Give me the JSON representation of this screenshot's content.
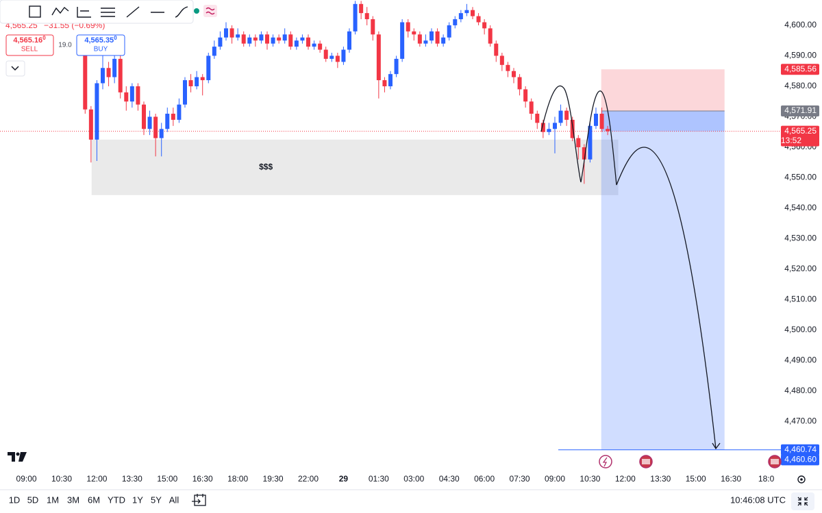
{
  "chart_data": {
    "type": "candlestick",
    "header": {
      "price": "4,565.25",
      "change": "−31.55 (−0.69%)"
    },
    "sell": {
      "price": "4,565.16",
      "price_suffix": "0",
      "label": "SELL"
    },
    "spread": "19.0",
    "buy": {
      "price": "4,565.35",
      "price_suffix": "0",
      "label": "BUY"
    },
    "xlim": [
      -4.5,
      128.5
    ],
    "ylim": [
      4454.4,
      4608.3
    ],
    "grid": false,
    "xticks": [
      {
        "value": 0,
        "label": "09:00"
      },
      {
        "value": 6,
        "label": "10:30"
      },
      {
        "value": 12,
        "label": "12:00"
      },
      {
        "value": 18,
        "label": "13:30"
      },
      {
        "value": 24,
        "label": "15:00"
      },
      {
        "value": 30,
        "label": "16:30"
      },
      {
        "value": 36,
        "label": "18:00"
      },
      {
        "value": 42,
        "label": "19:30"
      },
      {
        "value": 48,
        "label": "22:00"
      },
      {
        "value": 54,
        "label": "29"
      },
      {
        "value": 60,
        "label": "01:30"
      },
      {
        "value": 66,
        "label": "03:00"
      },
      {
        "value": 72,
        "label": "04:30"
      },
      {
        "value": 78,
        "label": "06:00"
      },
      {
        "value": 84,
        "label": "07:30"
      },
      {
        "value": 90,
        "label": "09:00"
      },
      {
        "value": 96,
        "label": "10:30"
      },
      {
        "value": 102,
        "label": "12:00"
      },
      {
        "value": 108,
        "label": "13:30"
      },
      {
        "value": 114,
        "label": "15:00"
      },
      {
        "value": 120,
        "label": "16:30"
      },
      {
        "value": 126,
        "label": "18:0"
      }
    ],
    "yticks": [
      {
        "value": 4600,
        "label": "4,600.00"
      },
      {
        "value": 4590,
        "label": "4,590.00"
      },
      {
        "value": 4580,
        "label": "4,580.00"
      },
      {
        "value": 4570,
        "label": "4,570.00"
      },
      {
        "value": 4560,
        "label": "4,560.00"
      },
      {
        "value": 4550,
        "label": "4,550.00"
      },
      {
        "value": 4540,
        "label": "4,540.00"
      },
      {
        "value": 4530,
        "label": "4,530.00"
      },
      {
        "value": 4520,
        "label": "4,520.00"
      },
      {
        "value": 4510,
        "label": "4,510.00"
      },
      {
        "value": 4500,
        "label": "4,500.00"
      },
      {
        "value": 4490,
        "label": "4,490.00"
      },
      {
        "value": 4480,
        "label": "4,480.00"
      },
      {
        "value": 4470,
        "label": "4,470.00"
      }
    ],
    "up_color": "#2962ff",
    "down_color": "#f23645",
    "candles": {
      "x": [
        10,
        11,
        12,
        13,
        14,
        15,
        16,
        17,
        18,
        19,
        20,
        21,
        22,
        23,
        24,
        25,
        26,
        27,
        28,
        29,
        30,
        31,
        32,
        33,
        34,
        35,
        36,
        37,
        38,
        39,
        40,
        41,
        42,
        43,
        44,
        45,
        46,
        47,
        48,
        49,
        50,
        51,
        52,
        53,
        54,
        55,
        56,
        57,
        58,
        59,
        60,
        61,
        62,
        63,
        64,
        65,
        66,
        67,
        68,
        69,
        70,
        71,
        72,
        73,
        74,
        75,
        76,
        77,
        78,
        79,
        80,
        81,
        82,
        83,
        84,
        85,
        86,
        87,
        88,
        89,
        90,
        91,
        92,
        93,
        94,
        95,
        96,
        97,
        98,
        99
      ],
      "open": [
        4590,
        4572.4,
        4562.5,
        4581,
        4586,
        4583,
        4589,
        4578,
        4575,
        4580,
        4574,
        4566,
        4570,
        4563,
        4566,
        4571,
        4569,
        4574,
        4582,
        4580,
        4583,
        4582,
        4590,
        4593,
        4596,
        4599,
        4596,
        4597,
        4594,
        4596,
        4595,
        4597,
        4594,
        4596,
        4595,
        4597,
        4593,
        4595,
        4596,
        4593,
        4594,
        4592,
        4589,
        4590,
        4588,
        4592,
        4598,
        4607,
        4604,
        4602,
        4597,
        4582,
        4580,
        4584,
        4589,
        4601,
        4598,
        4597,
        4594,
        4595,
        4598,
        4594,
        4596,
        4600,
        4602,
        4604,
        4605,
        4603,
        4601,
        4599,
        4594,
        4590,
        4587,
        4585,
        4583,
        4579,
        4575,
        4571,
        4568,
        4565,
        4566,
        4568,
        4572,
        4569,
        4563,
        4560,
        4556,
        4567,
        4571,
        4566
      ],
      "high": [
        4592,
        4573.5,
        4582,
        4590,
        4588,
        4592,
        4590,
        4580,
        4581,
        4581,
        4575,
        4572,
        4571,
        4568,
        4573,
        4573,
        4576,
        4583,
        4584,
        4585,
        4584,
        4591,
        4595,
        4598,
        4601,
        4600,
        4599,
        4598,
        4597,
        4597,
        4598,
        4598,
        4597,
        4597,
        4599,
        4598,
        4596,
        4597,
        4597,
        4595,
        4595,
        4593,
        4591,
        4591,
        4593,
        4599,
        4608,
        4608,
        4606,
        4603,
        4598,
        4583,
        4585,
        4590,
        4602,
        4602,
        4599,
        4598,
        4597,
        4599,
        4599,
        4597,
        4601,
        4603,
        4605,
        4607,
        4606,
        4604,
        4602,
        4600,
        4595,
        4591,
        4588,
        4586,
        4584,
        4580,
        4576,
        4572,
        4569,
        4568,
        4570,
        4574,
        4573,
        4570,
        4564,
        4561,
        4568,
        4573,
        4573,
        4567
      ],
      "low": [
        4571,
        4555,
        4555.5,
        4579,
        4580,
        4581,
        4576,
        4572,
        4573,
        4572,
        4564,
        4564,
        4557,
        4557,
        4565,
        4567,
        4568,
        4573,
        4578,
        4579,
        4577,
        4581,
        4589,
        4592,
        4595,
        4594,
        4595,
        4593,
        4593,
        4593,
        4594,
        4592,
        4593,
        4594,
        4594,
        4592,
        4592,
        4594,
        4592,
        4592,
        4591,
        4588,
        4588,
        4586,
        4587,
        4591,
        4597,
        4602,
        4600,
        4595,
        4576,
        4578,
        4579,
        4583,
        4588,
        4596,
        4595,
        4593,
        4593,
        4594,
        4593,
        4593,
        4595,
        4599,
        4601,
        4603,
        4602,
        4600,
        4597,
        4593,
        4588,
        4585,
        4583,
        4581,
        4577,
        4573,
        4569,
        4566,
        4563,
        4564,
        4558,
        4567,
        4567,
        4562,
        4556,
        4548,
        4555,
        4566,
        4565,
        4564
      ],
      "close": [
        4572.4,
        4562.5,
        4581,
        4586,
        4583,
        4589,
        4578,
        4575,
        4580,
        4574,
        4566,
        4570,
        4563,
        4566,
        4571,
        4569,
        4574,
        4582,
        4580,
        4583,
        4582,
        4590,
        4593,
        4596,
        4599,
        4596,
        4597,
        4594,
        4596,
        4595,
        4597,
        4594,
        4596,
        4595,
        4597,
        4593,
        4595,
        4596,
        4593,
        4594,
        4592,
        4589,
        4590,
        4588,
        4592,
        4598,
        4607,
        4604,
        4602,
        4597,
        4582,
        4580,
        4584,
        4589,
        4601,
        4598,
        4597,
        4594,
        4595,
        4598,
        4594,
        4596,
        4600,
        4602,
        4604,
        4605,
        4603,
        4601,
        4599,
        4594,
        4590,
        4587,
        4585,
        4583,
        4579,
        4575,
        4571,
        4568,
        4565,
        4566,
        4568,
        4572,
        4569,
        4563,
        4560,
        4556,
        4567,
        4571,
        4566,
        4565.25
      ]
    },
    "zone": {
      "label": "$$$",
      "top": 4562.5,
      "bottom": 4544.3,
      "x_start": 11.1,
      "x_end": 100.8
    },
    "position": {
      "x_start": 97.9,
      "x_end": 118.9,
      "stop": {
        "value": 4585.56,
        "label": "4,585.56"
      },
      "entry": {
        "value": 4571.91,
        "label": "4,571.91"
      },
      "target": {
        "value": 4460.74,
        "label": "4,460.74"
      }
    },
    "last_price": {
      "value": 4565.25,
      "label": "4,565.25",
      "countdown": "13:52"
    },
    "extra_level": {
      "value": 4460.6,
      "label": "4,460.60"
    }
  },
  "ui": {
    "ranges": [
      "1D",
      "5D",
      "1M",
      "3M",
      "6M",
      "YTD",
      "1Y",
      "5Y",
      "All"
    ],
    "clock": "10:46:08 UTC"
  }
}
